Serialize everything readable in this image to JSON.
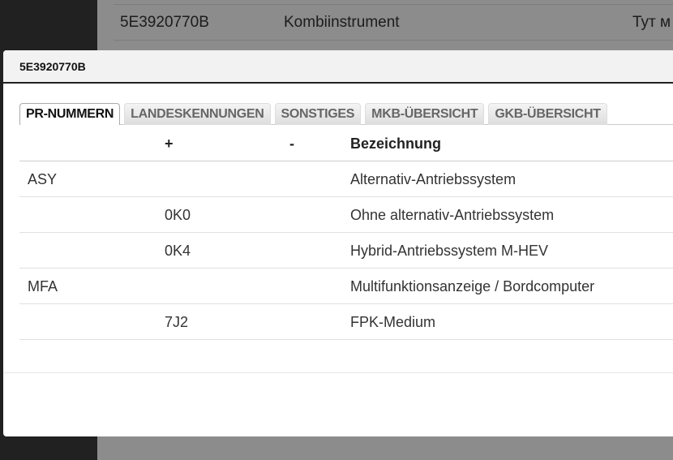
{
  "background": {
    "row": {
      "code": "5E3920770B",
      "name": "Kombiinstrument",
      "extra": "Тут м"
    }
  },
  "modal": {
    "title": "5E3920770B",
    "tabs": [
      "PR-NUMMERN",
      "LANDESKENNUNGEN",
      "SONSTIGES",
      "MKB-ÜBERSICHT",
      "GKB-ÜBERSICHT"
    ],
    "active_tab": "PR-NUMMERN",
    "table": {
      "headers": [
        "",
        "+",
        "-",
        "Bezeichnung"
      ],
      "rows": [
        [
          "ASY",
          "",
          "",
          "Alternativ-Antriebssystem"
        ],
        [
          "",
          "0K0",
          "",
          "Ohne alternativ-Antriebssystem"
        ],
        [
          "",
          "0K4",
          "",
          "Hybrid-Antriebssystem M-HEV"
        ],
        [
          "MFA",
          "",
          "",
          "Multifunktionsanzeige / Bordcomputer"
        ],
        [
          "",
          "7J2",
          "",
          "FPK-Medium"
        ]
      ]
    }
  }
}
